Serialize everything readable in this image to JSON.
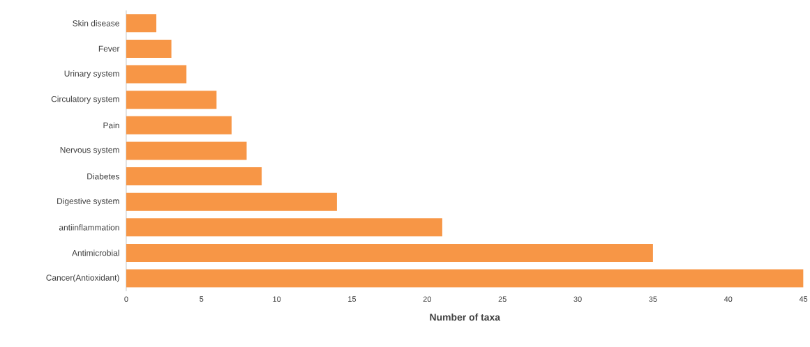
{
  "chart_data": {
    "type": "bar",
    "orientation": "horizontal",
    "xlabel": "Number of taxa",
    "categories": [
      "Skin disease",
      "Fever",
      "Urinary system",
      "Circulatory system",
      "Pain",
      "Nervous system",
      "Diabetes",
      "Digestive system",
      "antiinflammation",
      "Antimicrobial",
      "Cancer(Antioxidant)"
    ],
    "values": [
      2,
      3,
      4,
      6,
      7,
      8,
      9,
      14,
      21,
      35,
      45
    ],
    "color": "#f79646",
    "xlim": [
      0,
      45
    ],
    "xticks": [
      0,
      5,
      10,
      15,
      20,
      25,
      30,
      35,
      40,
      45
    ],
    "grid": false
  }
}
